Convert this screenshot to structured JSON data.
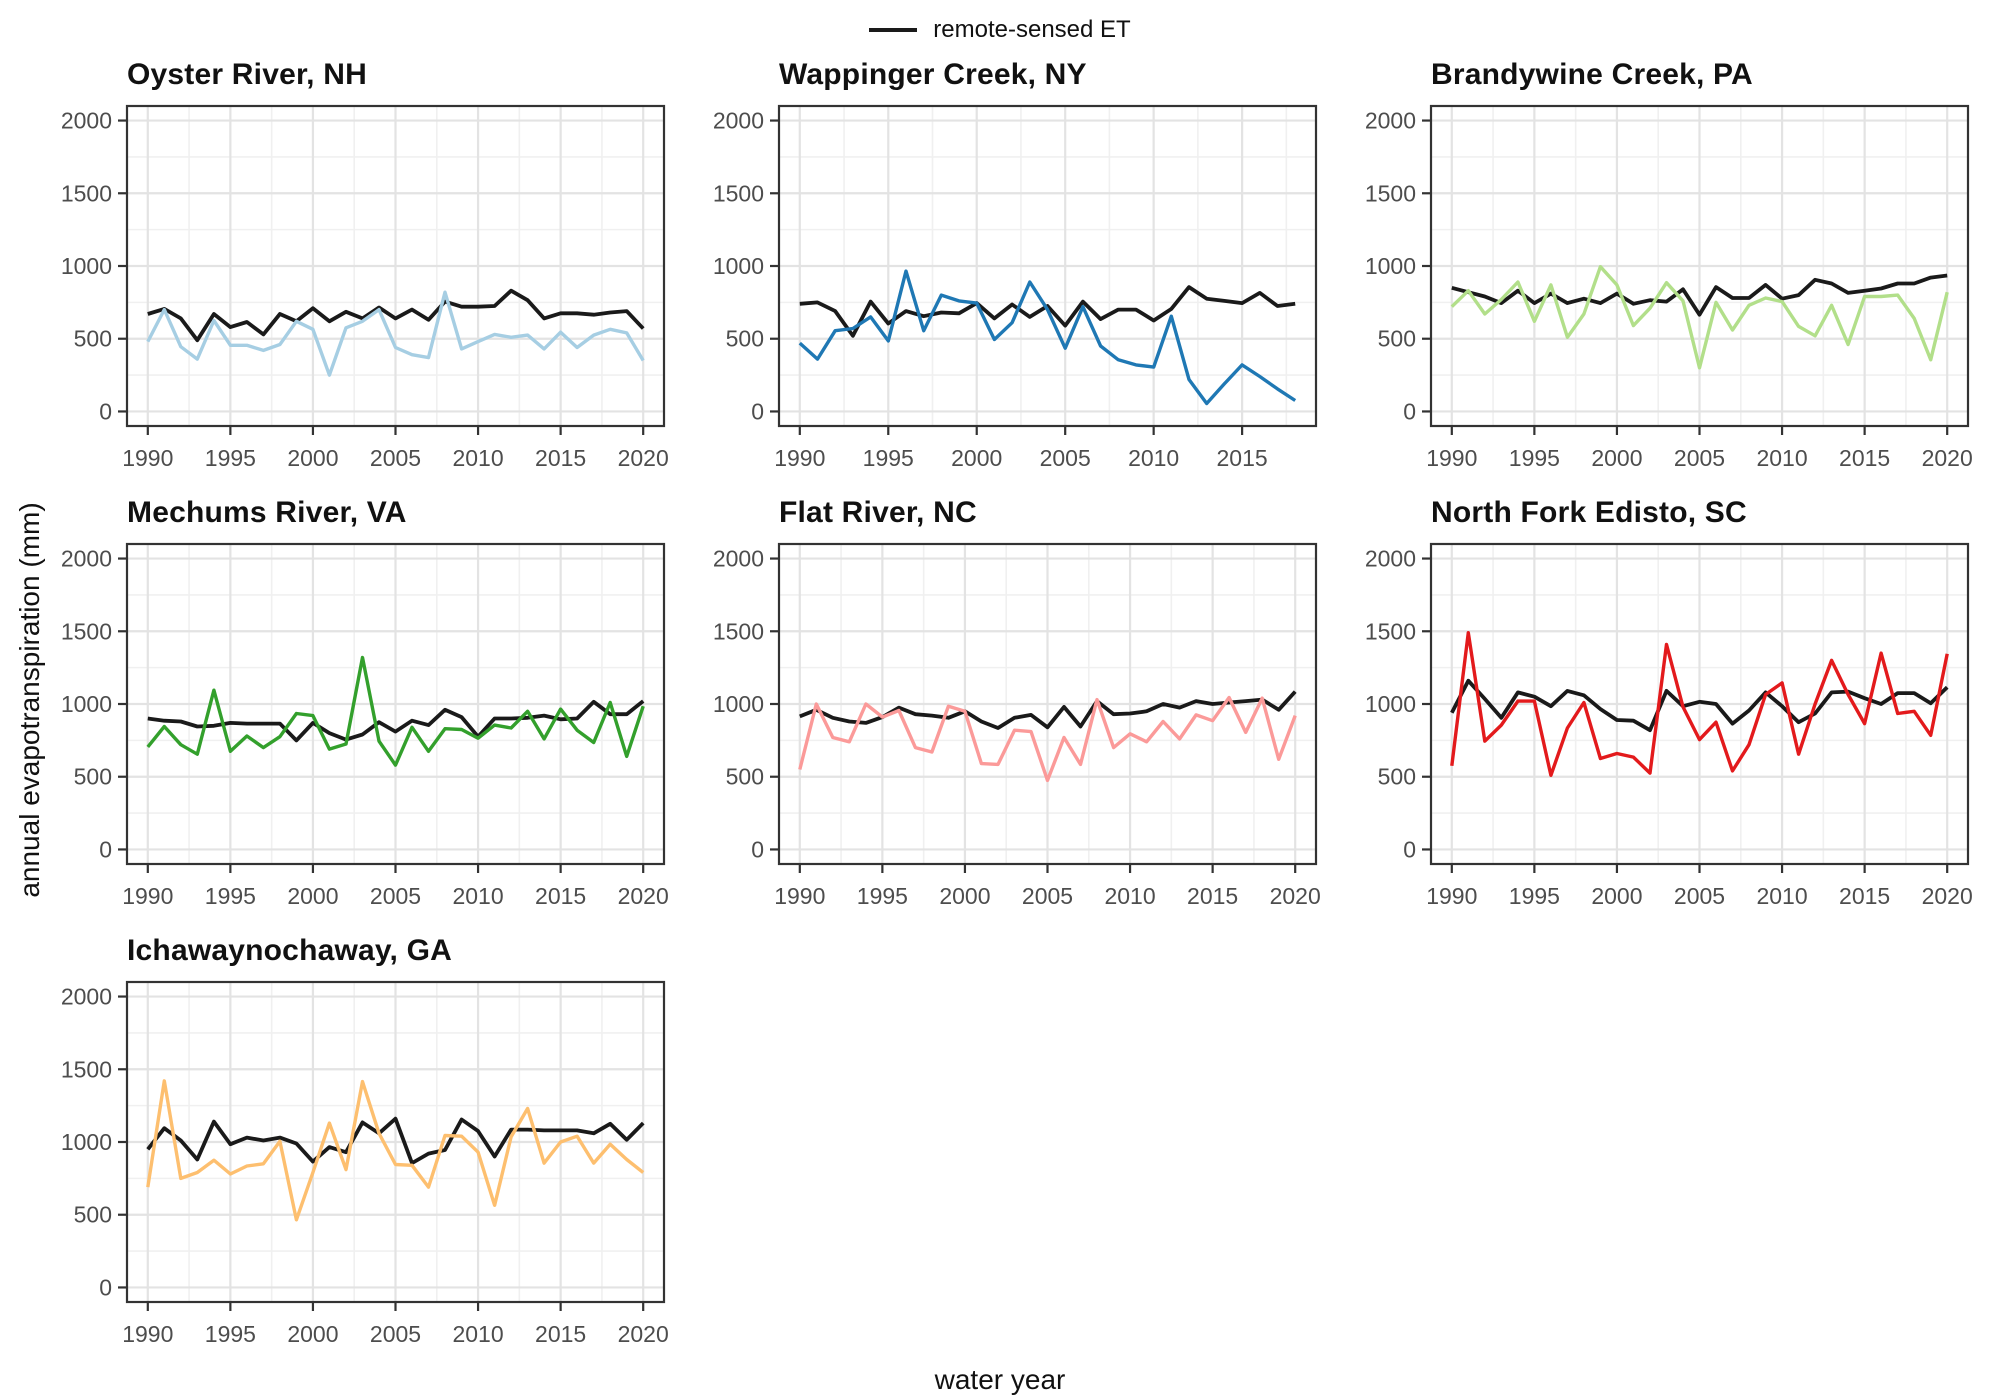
{
  "page": {
    "background": "#ffffff"
  },
  "axis_labels": {
    "y": "annual evapotranspiration (mm)",
    "x": "water year"
  },
  "legend": {
    "items": [
      {
        "label": "remote-sensed ET",
        "color": "#1a1a1a"
      }
    ]
  },
  "style": {
    "black_line": "#1a1a1a",
    "panel_border": "#333333",
    "major_grid": "#e3e3e3",
    "minor_grid": "#f0f0f0",
    "tick_label_color": "#4d4d4d"
  },
  "chart_data": [
    {
      "type": "line",
      "title": "Oyster River, NH",
      "x": [
        1990,
        1991,
        1992,
        1993,
        1994,
        1995,
        1996,
        1997,
        1998,
        1999,
        2000,
        2001,
        2002,
        2003,
        2004,
        2005,
        2006,
        2007,
        2008,
        2009,
        2010,
        2011,
        2012,
        2013,
        2014,
        2015,
        2016,
        2017,
        2018,
        2019,
        2020
      ],
      "x_ticks": [
        1990,
        1995,
        2000,
        2005,
        2010,
        2015,
        2020
      ],
      "y_ticks": [
        0,
        500,
        1000,
        1500,
        2000
      ],
      "ylim": [
        0,
        2000
      ],
      "series": [
        {
          "name": "remote-sensed ET",
          "color": "#1a1a1a",
          "values": [
            670,
            705,
            640,
            490,
            670,
            580,
            615,
            530,
            670,
            620,
            710,
            620,
            685,
            640,
            715,
            640,
            700,
            630,
            755,
            720,
            720,
            725,
            830,
            765,
            640,
            675,
            675,
            665,
            680,
            690,
            570
          ]
        },
        {
          "name": "unlabeled colored series",
          "color": "#a6cee3",
          "values": [
            480,
            700,
            445,
            360,
            625,
            455,
            455,
            420,
            460,
            620,
            565,
            250,
            575,
            620,
            700,
            440,
            390,
            370,
            820,
            430,
            480,
            530,
            510,
            525,
            430,
            545,
            440,
            525,
            565,
            540,
            350
          ]
        }
      ]
    },
    {
      "type": "line",
      "title": "Wappinger Creek, NY",
      "x": [
        1990,
        1991,
        1992,
        1993,
        1994,
        1995,
        1996,
        1997,
        1998,
        1999,
        2000,
        2001,
        2002,
        2003,
        2004,
        2005,
        2006,
        2007,
        2008,
        2009,
        2010,
        2011,
        2012,
        2013,
        2014,
        2015,
        2016,
        2017,
        2018
      ],
      "x_ticks": [
        1990,
        1995,
        2000,
        2005,
        2010,
        2015
      ],
      "y_ticks": [
        0,
        500,
        1000,
        1500,
        2000
      ],
      "ylim": [
        0,
        2000
      ],
      "series": [
        {
          "name": "remote-sensed ET",
          "color": "#1a1a1a",
          "values": [
            740,
            750,
            690,
            520,
            755,
            605,
            690,
            655,
            680,
            675,
            745,
            640,
            735,
            650,
            725,
            590,
            755,
            635,
            700,
            700,
            625,
            705,
            855,
            775,
            760,
            745,
            815,
            725,
            740
          ]
        },
        {
          "name": "unlabeled colored series",
          "color": "#1f78b4",
          "values": [
            470,
            360,
            555,
            570,
            650,
            485,
            965,
            555,
            800,
            760,
            745,
            495,
            610,
            890,
            700,
            435,
            720,
            450,
            355,
            320,
            305,
            655,
            220,
            55,
            190,
            320,
            240,
            155,
            75
          ]
        }
      ]
    },
    {
      "type": "line",
      "title": "Brandywine Creek, PA",
      "x": [
        1990,
        1991,
        1992,
        1993,
        1994,
        1995,
        1996,
        1997,
        1998,
        1999,
        2000,
        2001,
        2002,
        2003,
        2004,
        2005,
        2006,
        2007,
        2008,
        2009,
        2010,
        2011,
        2012,
        2013,
        2014,
        2015,
        2016,
        2017,
        2018,
        2019,
        2020
      ],
      "x_ticks": [
        1990,
        1995,
        2000,
        2005,
        2010,
        2015,
        2020
      ],
      "y_ticks": [
        0,
        500,
        1000,
        1500,
        2000
      ],
      "ylim": [
        0,
        2000
      ],
      "series": [
        {
          "name": "remote-sensed ET",
          "color": "#1a1a1a",
          "values": [
            850,
            820,
            790,
            745,
            830,
            745,
            810,
            745,
            775,
            745,
            810,
            740,
            765,
            755,
            840,
            665,
            855,
            780,
            780,
            870,
            775,
            800,
            905,
            880,
            815,
            830,
            845,
            880,
            880,
            920,
            935
          ]
        },
        {
          "name": "unlabeled colored series",
          "color": "#b2df8a",
          "values": [
            720,
            830,
            670,
            770,
            890,
            620,
            870,
            510,
            670,
            995,
            870,
            590,
            710,
            885,
            760,
            300,
            750,
            560,
            730,
            780,
            755,
            585,
            520,
            730,
            460,
            790,
            790,
            800,
            640,
            355,
            820
          ]
        }
      ]
    },
    {
      "type": "line",
      "title": "Mechums River, VA",
      "x": [
        1990,
        1991,
        1992,
        1993,
        1994,
        1995,
        1996,
        1997,
        1998,
        1999,
        2000,
        2001,
        2002,
        2003,
        2004,
        2005,
        2006,
        2007,
        2008,
        2009,
        2010,
        2011,
        2012,
        2013,
        2014,
        2015,
        2016,
        2017,
        2018,
        2019,
        2020
      ],
      "x_ticks": [
        1990,
        1995,
        2000,
        2005,
        2010,
        2015,
        2020
      ],
      "y_ticks": [
        0,
        500,
        1000,
        1500,
        2000
      ],
      "ylim": [
        0,
        2000
      ],
      "series": [
        {
          "name": "remote-sensed ET",
          "color": "#1a1a1a",
          "values": [
            900,
            885,
            880,
            845,
            850,
            870,
            865,
            865,
            865,
            750,
            870,
            800,
            755,
            790,
            875,
            810,
            885,
            855,
            960,
            910,
            775,
            900,
            900,
            905,
            920,
            895,
            900,
            1015,
            930,
            930,
            1020
          ]
        },
        {
          "name": "unlabeled colored series",
          "color": "#33a02c",
          "values": [
            705,
            845,
            720,
            655,
            1095,
            675,
            780,
            700,
            775,
            935,
            920,
            690,
            725,
            1320,
            745,
            580,
            840,
            675,
            830,
            825,
            765,
            855,
            835,
            950,
            760,
            965,
            820,
            735,
            1010,
            640,
            985
          ]
        }
      ]
    },
    {
      "type": "line",
      "title": "Flat River, NC",
      "x": [
        1990,
        1991,
        1992,
        1993,
        1994,
        1995,
        1996,
        1997,
        1998,
        1999,
        2000,
        2001,
        2002,
        2003,
        2004,
        2005,
        2006,
        2007,
        2008,
        2009,
        2010,
        2011,
        2012,
        2013,
        2014,
        2015,
        2016,
        2017,
        2018,
        2019,
        2020
      ],
      "x_ticks": [
        1990,
        1995,
        2000,
        2005,
        2010,
        2015,
        2020
      ],
      "y_ticks": [
        0,
        500,
        1000,
        1500,
        2000
      ],
      "ylim": [
        0,
        2000
      ],
      "series": [
        {
          "name": "remote-sensed ET",
          "color": "#1a1a1a",
          "values": [
            915,
            960,
            905,
            880,
            870,
            910,
            975,
            930,
            920,
            905,
            950,
            880,
            835,
            905,
            925,
            840,
            980,
            845,
            1020,
            930,
            935,
            950,
            1000,
            975,
            1020,
            1000,
            1010,
            1020,
            1030,
            960,
            1085
          ]
        },
        {
          "name": "unlabeled colored series",
          "color": "#fb9a99",
          "values": [
            550,
            1000,
            770,
            740,
            1000,
            910,
            955,
            700,
            670,
            985,
            950,
            590,
            585,
            820,
            810,
            475,
            770,
            585,
            1030,
            700,
            795,
            740,
            880,
            760,
            925,
            885,
            1045,
            805,
            1040,
            620,
            920
          ]
        }
      ]
    },
    {
      "type": "line",
      "title": "North Fork Edisto, SC",
      "x": [
        1990,
        1991,
        1992,
        1993,
        1994,
        1995,
        1996,
        1997,
        1998,
        1999,
        2000,
        2001,
        2002,
        2003,
        2004,
        2005,
        2006,
        2007,
        2008,
        2009,
        2010,
        2011,
        2012,
        2013,
        2014,
        2015,
        2016,
        2017,
        2018,
        2019,
        2020
      ],
      "x_ticks": [
        1990,
        1995,
        2000,
        2005,
        2010,
        2015,
        2020
      ],
      "y_ticks": [
        0,
        500,
        1000,
        1500,
        2000
      ],
      "ylim": [
        0,
        2000
      ],
      "series": [
        {
          "name": "remote-sensed ET",
          "color": "#1a1a1a",
          "values": [
            940,
            1160,
            1035,
            905,
            1080,
            1050,
            985,
            1090,
            1060,
            965,
            890,
            885,
            820,
            1090,
            985,
            1015,
            1000,
            865,
            955,
            1080,
            985,
            875,
            935,
            1080,
            1085,
            1040,
            1000,
            1075,
            1075,
            1005,
            1115
          ]
        },
        {
          "name": "unlabeled colored series",
          "color": "#e31a1c",
          "values": [
            575,
            1490,
            745,
            855,
            1020,
            1020,
            510,
            835,
            1010,
            625,
            660,
            635,
            525,
            1410,
            980,
            755,
            875,
            540,
            720,
            1065,
            1145,
            655,
            1000,
            1300,
            1065,
            865,
            1350,
            935,
            950,
            785,
            1345
          ]
        }
      ]
    },
    {
      "type": "line",
      "title": "Ichawaynochaway, GA",
      "x": [
        1990,
        1991,
        1992,
        1993,
        1994,
        1995,
        1996,
        1997,
        1998,
        1999,
        2000,
        2001,
        2002,
        2003,
        2004,
        2005,
        2006,
        2007,
        2008,
        2009,
        2010,
        2011,
        2012,
        2013,
        2014,
        2015,
        2016,
        2017,
        2018,
        2019,
        2020
      ],
      "x_ticks": [
        1990,
        1995,
        2000,
        2005,
        2010,
        2015,
        2020
      ],
      "y_ticks": [
        0,
        500,
        1000,
        1500,
        2000
      ],
      "ylim": [
        0,
        2000
      ],
      "series": [
        {
          "name": "remote-sensed ET",
          "color": "#1a1a1a",
          "values": [
            950,
            1095,
            1010,
            880,
            1140,
            985,
            1030,
            1010,
            1030,
            990,
            865,
            965,
            930,
            1135,
            1060,
            1160,
            855,
            920,
            945,
            1155,
            1075,
            900,
            1085,
            1085,
            1080,
            1080,
            1080,
            1060,
            1125,
            1015,
            1130
          ]
        },
        {
          "name": "unlabeled colored series",
          "color": "#fdbf6f",
          "values": [
            690,
            1420,
            750,
            790,
            875,
            780,
            835,
            850,
            1005,
            465,
            790,
            1130,
            810,
            1415,
            1060,
            845,
            840,
            690,
            1045,
            1040,
            930,
            565,
            1035,
            1230,
            855,
            1000,
            1040,
            855,
            985,
            880,
            790
          ]
        }
      ]
    }
  ]
}
